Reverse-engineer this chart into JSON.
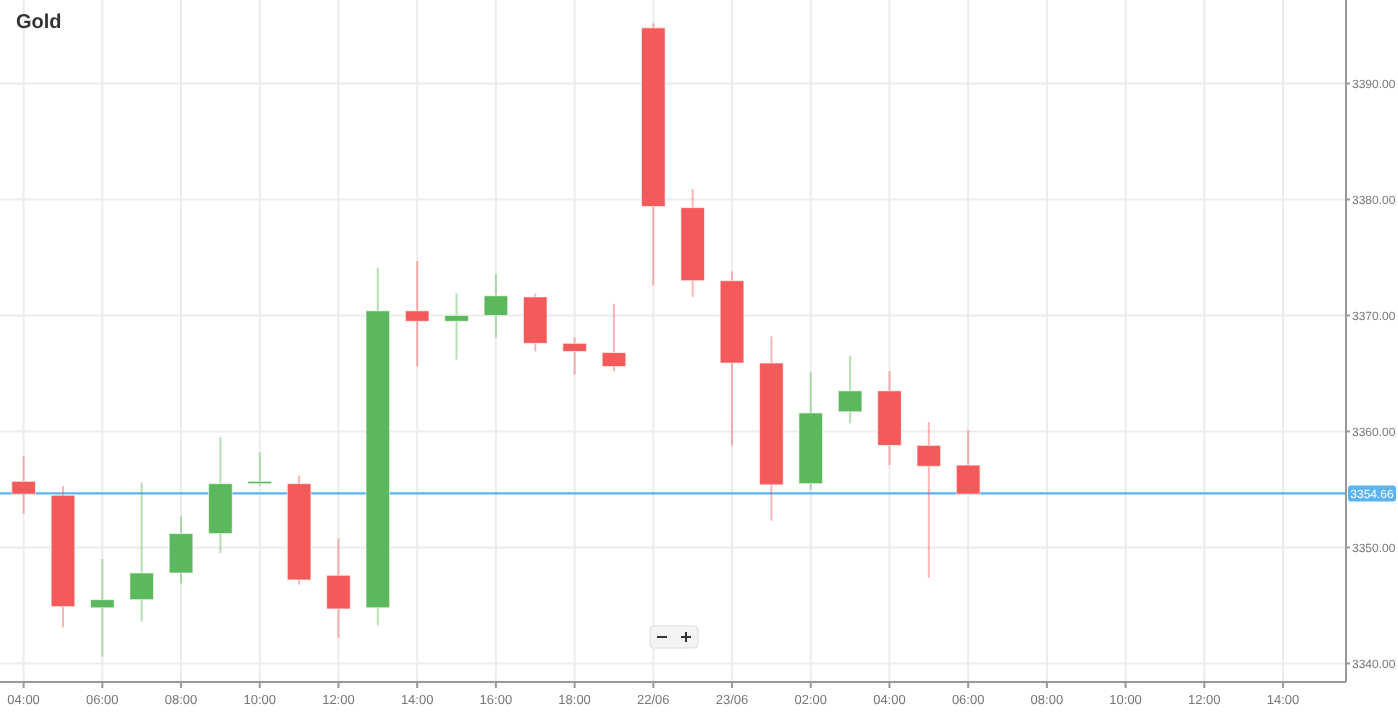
{
  "chart_data": {
    "type": "candlestick",
    "title": "Gold",
    "categories": [
      "04:00",
      null,
      "06:00",
      null,
      "08:00",
      null,
      "10:00",
      null,
      "12:00",
      null,
      "14:00",
      null,
      "16:00",
      null,
      "18:00",
      null,
      "22/06",
      null,
      "23/06",
      null,
      "02:00",
      null,
      "04:00",
      null,
      "06:00",
      null,
      "08:00",
      null,
      "10:00",
      null,
      "12:00",
      null,
      "14:00"
    ],
    "ohlc": [
      [
        3355.7,
        3357.9,
        3352.9,
        3354.6
      ],
      [
        3354.5,
        3355.3,
        3343.1,
        3344.9
      ],
      [
        3344.8,
        3349.0,
        3340.6,
        3345.5
      ],
      [
        3345.5,
        3355.6,
        3343.6,
        3347.8
      ],
      [
        3347.8,
        3352.7,
        3346.9,
        3351.2
      ],
      [
        3351.2,
        3359.5,
        3349.5,
        3355.5
      ],
      [
        3355.5,
        3358.2,
        3355.3,
        3355.7
      ],
      [
        3355.5,
        3356.2,
        3346.8,
        3347.2
      ],
      [
        3347.6,
        3350.8,
        3342.2,
        3344.7
      ],
      [
        3344.8,
        3374.1,
        3343.3,
        3370.4
      ],
      [
        3370.4,
        3374.7,
        3365.6,
        3369.5
      ],
      [
        3369.5,
        3371.9,
        3366.2,
        3370.0
      ],
      [
        3370.0,
        3373.6,
        3368.1,
        3371.7
      ],
      [
        3371.6,
        3371.9,
        3366.9,
        3367.6
      ],
      [
        3367.6,
        3368.1,
        3364.9,
        3366.9
      ],
      [
        3366.8,
        3371.0,
        3365.2,
        3365.6
      ],
      [
        3394.8,
        3395.2,
        3372.6,
        3379.4
      ],
      [
        3379.3,
        3380.9,
        3371.6,
        3373.0
      ],
      [
        3373.0,
        3373.8,
        3358.8,
        3365.9
      ],
      [
        3365.9,
        3368.2,
        3352.3,
        3355.4
      ],
      [
        3355.5,
        3365.1,
        3355.0,
        3361.6
      ],
      [
        3361.7,
        3366.5,
        3360.7,
        3363.5
      ],
      [
        3363.5,
        3365.2,
        3357.1,
        3358.8
      ],
      [
        3358.8,
        3360.8,
        3347.4,
        3357.0
      ],
      [
        3357.1,
        3360.1,
        3354.6,
        3354.6
      ],
      null,
      null,
      null,
      null,
      null,
      null,
      null,
      null
    ],
    "colors": [
      "#f55a5a",
      "#f55a5a",
      "#5cb85c",
      "#5cb85c",
      "#5cb85c",
      "#5cb85c",
      "#5cb85c",
      "#f55a5a",
      "#f55a5a",
      "#5cb85c",
      "#f55a5a",
      "#5cb85c",
      "#5cb85c",
      "#f55a5a",
      "#f55a5a",
      "#f55a5a",
      "#f55a5a",
      "#f55a5a",
      "#f55a5a",
      "#f55a5a",
      "#5cb85c",
      "#5cb85c",
      "#f55a5a",
      "#f55a5a",
      "#f55a5a",
      null,
      null,
      null,
      null,
      null,
      null,
      null,
      null
    ],
    "ylim": [
      3338.4,
      3397.2
    ],
    "yticks": [
      {
        "value": 3340,
        "label": "3340.00"
      },
      {
        "value": 3350,
        "label": "3350.00"
      },
      {
        "value": 3360,
        "label": "3360.00"
      },
      {
        "value": 3370,
        "label": "3370.00"
      },
      {
        "value": 3380,
        "label": "3380.00"
      },
      {
        "value": 3390,
        "label": "3390.00"
      }
    ],
    "grid": true,
    "ref_lines": [
      {
        "axis": "y",
        "value": 3354.66,
        "label": "3354.66",
        "color": "#5ab4f0"
      }
    ]
  }
}
